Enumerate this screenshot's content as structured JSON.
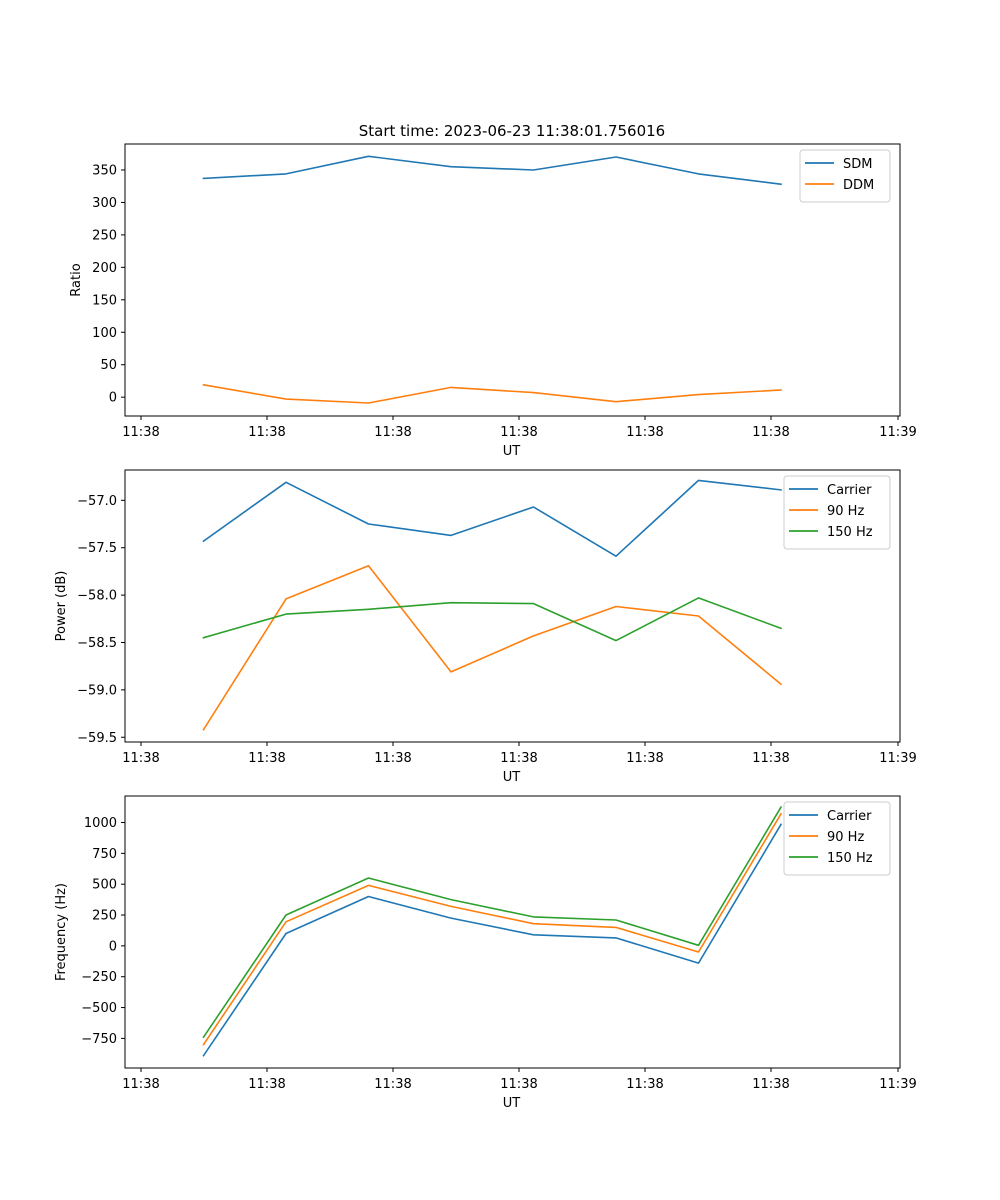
{
  "figure_title": "Start time: 2023-06-23 11:38:01.756016",
  "colors": {
    "c0": "#1f77b4",
    "c1": "#ff7f0e",
    "c2": "#2ca02c"
  },
  "chart_data": [
    {
      "type": "line",
      "title": "Start time: 2023-06-23 11:38:01.756016",
      "xlabel": "UT",
      "ylabel": "Ratio",
      "x_tick_labels": [
        "11:38",
        "11:38",
        "11:38",
        "11:38",
        "11:38",
        "11:38",
        "11:39"
      ],
      "y_ticks": [
        0,
        50,
        100,
        150,
        200,
        250,
        300,
        350
      ],
      "ylim": [
        -29,
        390
      ],
      "legend_position": "upper-right",
      "grid": false,
      "series": [
        {
          "name": "SDM",
          "color": "#1f77b4",
          "values": [
            337,
            344,
            371,
            355,
            350,
            370,
            344,
            328
          ]
        },
        {
          "name": "DDM",
          "color": "#ff7f0e",
          "values": [
            19,
            -3,
            -9,
            15,
            7,
            -7,
            4,
            11
          ]
        }
      ]
    },
    {
      "type": "line",
      "xlabel": "UT",
      "ylabel": "Power (dB)",
      "x_tick_labels": [
        "11:38",
        "11:38",
        "11:38",
        "11:38",
        "11:38",
        "11:38",
        "11:39"
      ],
      "y_ticks": [
        -59.5,
        -59.0,
        -58.5,
        -58.0,
        -57.5,
        -57.0
      ],
      "y_tick_labels": [
        "−59.5",
        "−59.0",
        "−58.5",
        "−58.0",
        "−57.5",
        "−57.0"
      ],
      "ylim": [
        -59.55,
        -56.68
      ],
      "legend_position": "upper-right",
      "grid": false,
      "series": [
        {
          "name": "Carrier",
          "color": "#1f77b4",
          "values": [
            -57.43,
            -56.81,
            -57.25,
            -57.37,
            -57.07,
            -57.59,
            -56.79,
            -56.89
          ]
        },
        {
          "name": "90 Hz",
          "color": "#ff7f0e",
          "values": [
            -59.42,
            -58.04,
            -57.69,
            -58.81,
            -58.43,
            -58.12,
            -58.22,
            -58.94
          ]
        },
        {
          "name": "150 Hz",
          "color": "#2ca02c",
          "values": [
            -58.45,
            -58.2,
            -58.15,
            -58.08,
            -58.09,
            -58.48,
            -58.03,
            -58.35
          ]
        }
      ]
    },
    {
      "type": "line",
      "xlabel": "UT",
      "ylabel": "Frequency (Hz)",
      "x_tick_labels": [
        "11:38",
        "11:38",
        "11:38",
        "11:38",
        "11:38",
        "11:38",
        "11:39"
      ],
      "y_ticks": [
        -750,
        -500,
        -250,
        0,
        250,
        500,
        750,
        1000
      ],
      "y_tick_labels": [
        "−750",
        "−500",
        "−250",
        "0",
        "250",
        "500",
        "750",
        "1000"
      ],
      "ylim": [
        -990,
        1215
      ],
      "legend_position": "upper-right",
      "grid": false,
      "series": [
        {
          "name": "Carrier",
          "color": "#1f77b4",
          "values": [
            -890,
            100,
            400,
            225,
            90,
            65,
            -140,
            985
          ]
        },
        {
          "name": "90 Hz",
          "color": "#ff7f0e",
          "values": [
            -800,
            195,
            490,
            320,
            180,
            150,
            -50,
            1070
          ]
        },
        {
          "name": "150 Hz",
          "color": "#2ca02c",
          "values": [
            -740,
            250,
            550,
            375,
            235,
            210,
            5,
            1125
          ]
        }
      ]
    }
  ]
}
